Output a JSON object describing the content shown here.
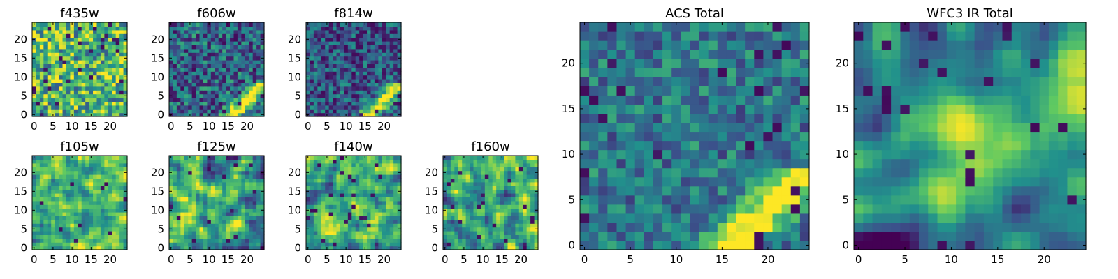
{
  "figure": {
    "colormap": [
      "#440154",
      "#3b528b",
      "#21918c",
      "#5ec962",
      "#fde725"
    ]
  },
  "chart_data": [
    {
      "type": "heatmap",
      "title": "f435w",
      "xlim": [
        0,
        24
      ],
      "ylim": [
        0,
        24
      ],
      "xticks": [
        0,
        5,
        10,
        15,
        20
      ],
      "yticks": [
        0,
        5,
        10,
        15,
        20
      ],
      "pattern": "noise",
      "base": 0.66,
      "amp": 0.38,
      "dark": 0.05,
      "seed": 11
    },
    {
      "type": "heatmap",
      "title": "f606w",
      "xlim": [
        0,
        24
      ],
      "ylim": [
        0,
        24
      ],
      "xticks": [
        0,
        5,
        10,
        15,
        20
      ],
      "yticks": [
        0,
        5,
        10,
        15,
        20
      ],
      "pattern": "streak",
      "base": 0.34,
      "amp": 0.28,
      "dark": 0.06,
      "seed": 23
    },
    {
      "type": "heatmap",
      "title": "f814w",
      "xlim": [
        0,
        24
      ],
      "ylim": [
        0,
        24
      ],
      "xticks": [
        0,
        5,
        10,
        15,
        20
      ],
      "yticks": [
        0,
        5,
        10,
        15,
        20
      ],
      "pattern": "streak",
      "base": 0.28,
      "amp": 0.26,
      "dark": 0.07,
      "seed": 37
    },
    {
      "type": "heatmap",
      "title": "f105w",
      "xlim": [
        0,
        24
      ],
      "ylim": [
        0,
        24
      ],
      "xticks": [
        0,
        5,
        10,
        15,
        20
      ],
      "yticks": [
        0,
        5,
        10,
        15,
        20
      ],
      "pattern": "smooth",
      "base": 0.66,
      "amp": 0.36,
      "dark": 0.01,
      "seed": 41
    },
    {
      "type": "heatmap",
      "title": "f125w",
      "xlim": [
        0,
        24
      ],
      "ylim": [
        0,
        24
      ],
      "xticks": [
        0,
        5,
        10,
        15,
        20
      ],
      "yticks": [
        0,
        5,
        10,
        15,
        20
      ],
      "pattern": "smooth",
      "base": 0.6,
      "amp": 0.42,
      "dark": 0.03,
      "seed": 53
    },
    {
      "type": "heatmap",
      "title": "f140w",
      "xlim": [
        0,
        24
      ],
      "ylim": [
        0,
        24
      ],
      "xticks": [
        0,
        5,
        10,
        15,
        20
      ],
      "yticks": [
        0,
        5,
        10,
        15,
        20
      ],
      "pattern": "smooth",
      "base": 0.64,
      "amp": 0.4,
      "dark": 0.03,
      "seed": 67
    },
    {
      "type": "heatmap",
      "title": "f160w",
      "xlim": [
        0,
        24
      ],
      "ylim": [
        0,
        24
      ],
      "xticks": [
        0,
        5,
        10,
        15,
        20
      ],
      "yticks": [
        0,
        5,
        10,
        15,
        20
      ],
      "pattern": "smooth",
      "base": 0.62,
      "amp": 0.42,
      "dark": 0.04,
      "seed": 79
    },
    {
      "type": "heatmap",
      "title": "ACS Total",
      "xlim": [
        0,
        24
      ],
      "ylim": [
        0,
        24
      ],
      "xticks": [
        0,
        5,
        10,
        15,
        20
      ],
      "yticks": [
        0,
        5,
        10,
        15,
        20
      ],
      "pattern": "streak",
      "base": 0.4,
      "amp": 0.22,
      "dark": 0.04,
      "seed": 89
    },
    {
      "type": "heatmap",
      "title": "WFC3 IR Total",
      "xlim": [
        0,
        24
      ],
      "ylim": [
        0,
        24
      ],
      "xticks": [
        0,
        5,
        10,
        15,
        20
      ],
      "yticks": [
        0,
        5,
        10,
        15,
        20
      ],
      "pattern": "blob",
      "base": 0.46,
      "amp": 0.2,
      "dark": 0.04,
      "seed": 97
    }
  ]
}
